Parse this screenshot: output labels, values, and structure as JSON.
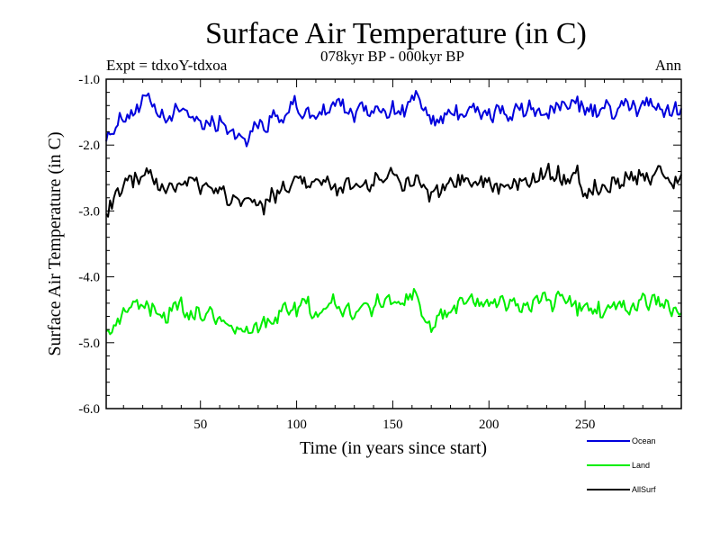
{
  "chart_data": {
    "type": "line",
    "title": "Surface Air Temperature (in C)",
    "subtitle": "078kyr BP - 000kyr BP",
    "left_note": "Expt = tdxoY-tdxoa",
    "right_note": "Ann",
    "xlabel": "Time (in years since start)",
    "ylabel": "Surface Air Temperature (in C)",
    "xlim": [
      1,
      300
    ],
    "ylim": [
      -6.0,
      -1.0
    ],
    "x_ticks": [
      50,
      100,
      150,
      200,
      250
    ],
    "x_tick_labels": [
      "50",
      "100",
      "150",
      "200",
      "250"
    ],
    "y_ticks": [
      -6.0,
      -5.0,
      -4.0,
      -3.0,
      -2.0,
      -1.0
    ],
    "y_tick_labels": [
      "-6.0",
      "-5.0",
      "-4.0",
      "-3.0",
      "-2.0",
      "-1.0"
    ],
    "x_minor_step": 10,
    "y_minor_step": 0.2,
    "legend_location": "bottom-right, below plot",
    "series": [
      {
        "name": "Ocean",
        "color": "#0000dd",
        "x_step": 10,
        "x_start": 1,
        "values": [
          -1.8,
          -1.5,
          -1.4,
          -1.6,
          -1.5,
          -1.6,
          -1.65,
          -1.85,
          -1.7,
          -1.55,
          -1.45,
          -1.5,
          -1.45,
          -1.55,
          -1.4,
          -1.45,
          -1.35,
          -1.65,
          -1.5,
          -1.45,
          -1.55,
          -1.5,
          -1.55,
          -1.45,
          -1.4,
          -1.5,
          -1.5,
          -1.45,
          -1.4,
          -1.5
        ]
      },
      {
        "name": "AllSurf",
        "color": "#000000",
        "x_step": 10,
        "x_start": 1,
        "values": [
          -2.9,
          -2.65,
          -2.5,
          -2.6,
          -2.6,
          -2.65,
          -2.75,
          -2.9,
          -2.85,
          -2.7,
          -2.55,
          -2.6,
          -2.55,
          -2.65,
          -2.5,
          -2.5,
          -2.45,
          -2.75,
          -2.6,
          -2.5,
          -2.55,
          -2.55,
          -2.5,
          -2.45,
          -2.45,
          -2.6,
          -2.6,
          -2.55,
          -2.5,
          -2.45
        ]
      },
      {
        "name": "Land",
        "color": "#00ee00",
        "x_step": 10,
        "x_start": 1,
        "values": [
          -4.8,
          -4.6,
          -4.35,
          -4.5,
          -4.5,
          -4.55,
          -4.65,
          -4.8,
          -4.75,
          -4.6,
          -4.5,
          -4.45,
          -4.4,
          -4.55,
          -4.35,
          -4.3,
          -4.3,
          -4.7,
          -4.45,
          -4.35,
          -4.5,
          -4.4,
          -4.4,
          -4.35,
          -4.35,
          -4.55,
          -4.5,
          -4.5,
          -4.35,
          -4.4
        ]
      }
    ]
  }
}
